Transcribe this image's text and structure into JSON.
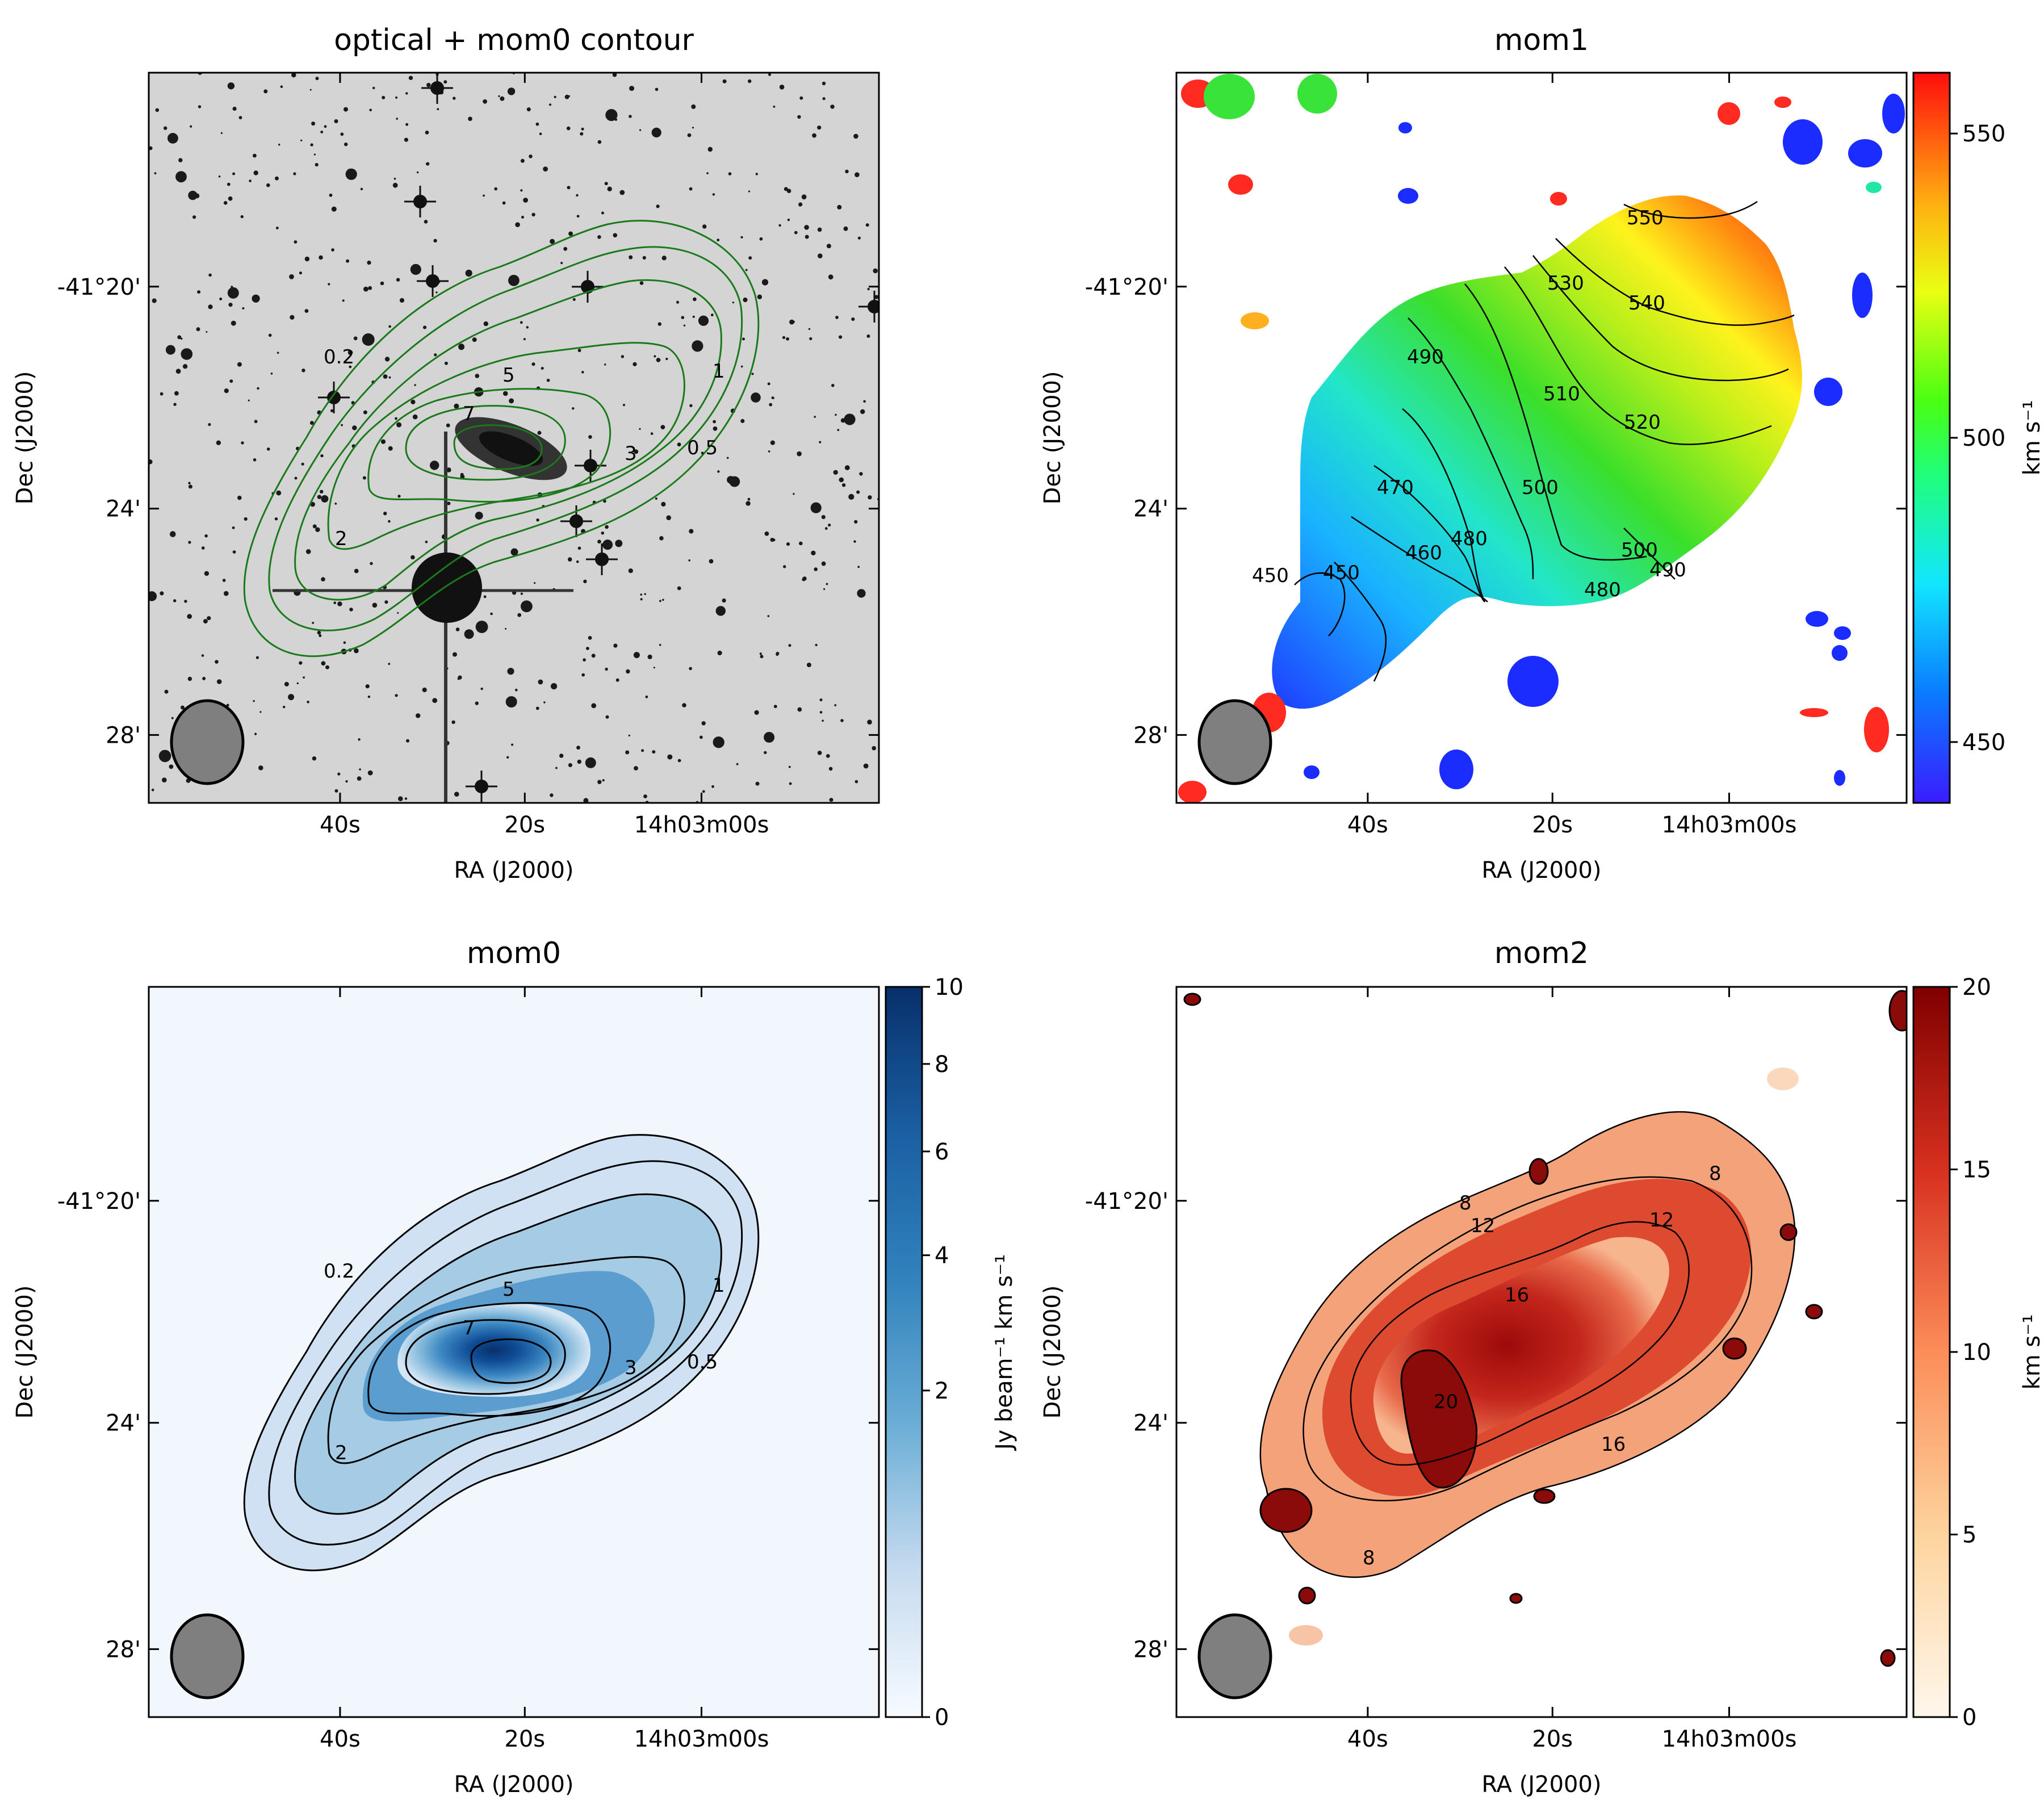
{
  "figure": {
    "panels": [
      {
        "id": "optical",
        "title": "optical + mom0 contour",
        "xlabel": "RA (J2000)",
        "ylabel": "Dec (J2000)"
      },
      {
        "id": "mom1",
        "title": "mom1",
        "xlabel": "RA (J2000)",
        "ylabel": "Dec (J2000)"
      },
      {
        "id": "mom0",
        "title": "mom0",
        "xlabel": "RA (J2000)",
        "ylabel": "Dec (J2000)"
      },
      {
        "id": "mom2",
        "title": "mom2",
        "xlabel": "RA (J2000)",
        "ylabel": "Dec (J2000)"
      }
    ]
  },
  "chart_data": [
    {
      "type": "image",
      "panel": "optical",
      "title": "optical + mom0 contour",
      "xlabel": "RA (J2000)",
      "ylabel": "Dec (J2000)",
      "x_ticks": [
        "40s",
        "20s",
        "14h03m00s"
      ],
      "y_ticks": [
        "-41°20'",
        "24'",
        "28'"
      ],
      "contour_levels": [
        "0.2",
        "0.5",
        "1",
        "2",
        "3",
        "5",
        "7"
      ],
      "contour_color": "#1a7a1a",
      "colormap": "greyscale"
    },
    {
      "type": "image",
      "panel": "mom1",
      "title": "mom1",
      "xlabel": "RA (J2000)",
      "ylabel": "Dec (J2000)",
      "x_ticks": [
        "40s",
        "20s",
        "14h03m00s"
      ],
      "y_ticks": [
        "-41°20'",
        "24'",
        "28'"
      ],
      "contour_levels": [
        "450",
        "450",
        "460",
        "470",
        "480",
        "490",
        "500",
        "500",
        "490",
        "480",
        "510",
        "520",
        "530",
        "540",
        "550"
      ],
      "colorbar": {
        "label": "km s⁻¹",
        "ticks": [
          "450",
          "500",
          "550"
        ],
        "range": [
          440,
          560
        ],
        "colormap": "gist_rainbow"
      }
    },
    {
      "type": "image",
      "panel": "mom0",
      "title": "mom0",
      "xlabel": "RA (J2000)",
      "ylabel": "Dec (J2000)",
      "x_ticks": [
        "40s",
        "20s",
        "14h03m00s"
      ],
      "y_ticks": [
        "-41°20'",
        "24'",
        "28'"
      ],
      "contour_levels": [
        "0.2",
        "0.5",
        "1",
        "2",
        "3",
        "5",
        "7"
      ],
      "colorbar": {
        "label": "Jy beam⁻¹ km s⁻¹",
        "ticks": [
          "0",
          "2",
          "4",
          "6",
          "8",
          "10"
        ],
        "range": [
          0,
          10
        ],
        "colormap": "Blues"
      }
    },
    {
      "type": "image",
      "panel": "mom2",
      "title": "mom2",
      "xlabel": "RA (J2000)",
      "ylabel": "Dec (J2000)",
      "x_ticks": [
        "40s",
        "20s",
        "14h03m00s"
      ],
      "y_ticks": [
        "-41°20'",
        "24'",
        "28'"
      ],
      "contour_levels": [
        "8",
        "8",
        "8",
        "12",
        "12",
        "16",
        "16",
        "20"
      ],
      "colorbar": {
        "label": "km s⁻¹",
        "ticks": [
          "0",
          "5",
          "10",
          "15",
          "20"
        ],
        "range": [
          0,
          20
        ],
        "colormap": "OrRd"
      }
    }
  ]
}
